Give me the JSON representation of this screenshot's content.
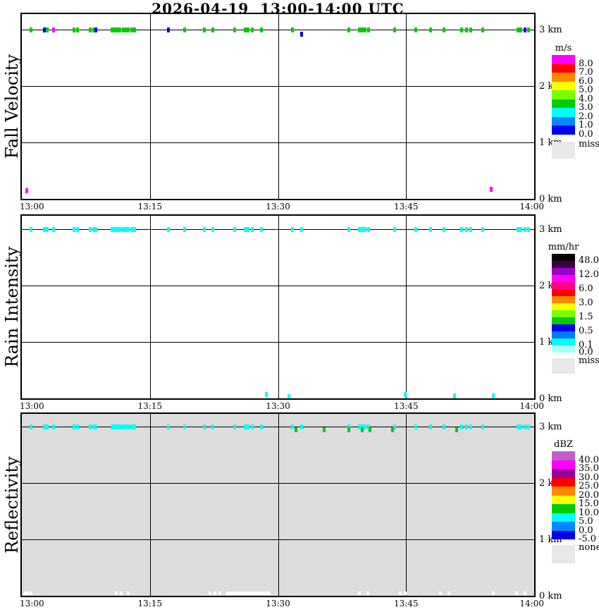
{
  "title": "2026-04-19  13:00-14:00 UTC",
  "palette": {
    "g": "#00cc00",
    "b": "#0000ee",
    "m": "#ff00ff",
    "c": "#00ffff",
    "w": "#ffffff"
  },
  "chart_data": [
    {
      "type": "heatmap",
      "panel": "fall_velocity",
      "ylabel": "Fall Velocity",
      "units": "m/s",
      "background": "#ffffff",
      "x_range": [
        "13:00",
        "14:00"
      ],
      "y_range_km": [
        0,
        3.3
      ],
      "x_ticks": [
        "13:00",
        "13:15",
        "13:30",
        "13:45",
        "14:00"
      ],
      "y_ticks": [
        "3 km",
        "2 km",
        "1 km",
        "0 km"
      ],
      "legend": {
        "title": "m/s",
        "blocks": [
          {
            "color": "#ff00ff",
            "label": "8.0"
          },
          {
            "color": "#ff0000",
            "label": "7.0"
          },
          {
            "color": "#ff8800",
            "label": "6.0"
          },
          {
            "color": "#ffff00",
            "label": "5.0"
          },
          {
            "color": "#77ff00",
            "label": "4.0"
          },
          {
            "color": "#00cc00",
            "label": "3.0"
          },
          {
            "color": "#00ffff",
            "label": "2.0"
          },
          {
            "color": "#0088ff",
            "label": "1.0"
          },
          {
            "color": "#0000ee",
            "label": "0.0"
          }
        ],
        "miss": {
          "color": "#e8e8e8",
          "label": "miss"
        }
      },
      "marks": [
        [
          1.1,
          3,
          "g"
        ],
        [
          2.7,
          3,
          "g"
        ],
        [
          3.0,
          3,
          "g"
        ],
        [
          6.1,
          3,
          "g"
        ],
        [
          6.5,
          3,
          "g"
        ],
        [
          8.0,
          3,
          "g"
        ],
        [
          8.4,
          3,
          "g"
        ],
        [
          10.6,
          3,
          "g"
        ],
        [
          10.9,
          3,
          "g"
        ],
        [
          11.2,
          3,
          "g"
        ],
        [
          11.5,
          3,
          "g"
        ],
        [
          11.9,
          3,
          "g"
        ],
        [
          12.2,
          3,
          "g"
        ],
        [
          12.5,
          3,
          "g"
        ],
        [
          12.9,
          3,
          "g"
        ],
        [
          13.2,
          3,
          "g"
        ],
        [
          19.1,
          3,
          "g"
        ],
        [
          21.4,
          3,
          "g"
        ],
        [
          22.4,
          3,
          "g"
        ],
        [
          24.9,
          3,
          "g"
        ],
        [
          26.2,
          3,
          "g"
        ],
        [
          26.5,
          3,
          "g"
        ],
        [
          27.0,
          3,
          "g"
        ],
        [
          28.1,
          3,
          "g"
        ],
        [
          31.7,
          3,
          "g"
        ],
        [
          38.3,
          3,
          "g"
        ],
        [
          39.5,
          3,
          "g"
        ],
        [
          39.9,
          3,
          "g"
        ],
        [
          40.2,
          3,
          "g"
        ],
        [
          40.6,
          3,
          "g"
        ],
        [
          43.7,
          3,
          "g"
        ],
        [
          46.1,
          3,
          "g"
        ],
        [
          47.9,
          3,
          "g"
        ],
        [
          49.4,
          3,
          "g"
        ],
        [
          51.5,
          3,
          "g"
        ],
        [
          52.1,
          3,
          "g"
        ],
        [
          52.6,
          3,
          "g"
        ],
        [
          54.0,
          3,
          "g"
        ],
        [
          58.1,
          3,
          "g"
        ],
        [
          58.4,
          3,
          "g"
        ],
        [
          59.3,
          3,
          "g"
        ],
        [
          2.6,
          3,
          "b"
        ],
        [
          8.7,
          3,
          "b"
        ],
        [
          17.2,
          3,
          "b"
        ],
        [
          58.9,
          3,
          "b"
        ],
        [
          32.8,
          2.93,
          "b"
        ],
        [
          3.7,
          3,
          "m"
        ],
        [
          0.6,
          0.15,
          "m"
        ],
        [
          55.0,
          0.18,
          "m"
        ]
      ]
    },
    {
      "type": "heatmap",
      "panel": "rain_intensity",
      "ylabel": "Rain Intensity",
      "units": "mm/hr",
      "background": "#ffffff",
      "x_range": [
        "13:00",
        "14:00"
      ],
      "y_range_km": [
        0,
        3.3
      ],
      "x_ticks": [
        "13:00",
        "13:15",
        "13:30",
        "13:45",
        "14:00"
      ],
      "y_ticks": [
        "3 km",
        "2 km",
        "1 km",
        "0 km"
      ],
      "legend": {
        "title": "mm/hr",
        "blocks": [
          {
            "color": "#000000",
            "label": "48.0"
          },
          {
            "color": "#3c0040",
            "label": ""
          },
          {
            "color": "#9900cc",
            "label": "12.0"
          },
          {
            "color": "#ff00ff",
            "label": ""
          },
          {
            "color": "#ff0088",
            "label": "6.0"
          },
          {
            "color": "#ff0000",
            "label": ""
          },
          {
            "color": "#ff8800",
            "label": "3.0"
          },
          {
            "color": "#ffff00",
            "label": ""
          },
          {
            "color": "#77ff00",
            "label": "1.5"
          },
          {
            "color": "#00cc00",
            "label": ""
          },
          {
            "color": "#0000ee",
            "label": "0.5"
          },
          {
            "color": "#0077ff",
            "label": ""
          },
          {
            "color": "#00ffff",
            "label": "0.1"
          },
          {
            "color": "#aaffff",
            "label": "0.0"
          }
        ],
        "miss": {
          "color": "#e8e8e8",
          "label": "miss"
        }
      },
      "marks": [
        [
          1.1,
          3,
          "c"
        ],
        [
          2.6,
          3,
          "c"
        ],
        [
          2.7,
          3,
          "c"
        ],
        [
          3.0,
          3,
          "c"
        ],
        [
          3.7,
          3,
          "c"
        ],
        [
          6.1,
          3,
          "c"
        ],
        [
          6.5,
          3,
          "c"
        ],
        [
          8.0,
          3,
          "c"
        ],
        [
          8.4,
          3,
          "c"
        ],
        [
          8.7,
          3,
          "c"
        ],
        [
          10.6,
          3,
          "c"
        ],
        [
          10.9,
          3,
          "c"
        ],
        [
          11.2,
          3,
          "c"
        ],
        [
          11.5,
          3,
          "c"
        ],
        [
          11.9,
          3,
          "c"
        ],
        [
          12.2,
          3,
          "c"
        ],
        [
          12.5,
          3,
          "c"
        ],
        [
          12.9,
          3,
          "c"
        ],
        [
          13.2,
          3,
          "c"
        ],
        [
          17.2,
          3,
          "c"
        ],
        [
          19.1,
          3,
          "c"
        ],
        [
          21.4,
          3,
          "c"
        ],
        [
          22.4,
          3,
          "c"
        ],
        [
          24.9,
          3,
          "c"
        ],
        [
          26.2,
          3,
          "c"
        ],
        [
          26.5,
          3,
          "c"
        ],
        [
          27.0,
          3,
          "c"
        ],
        [
          28.1,
          3,
          "c"
        ],
        [
          31.7,
          3,
          "c"
        ],
        [
          32.8,
          3,
          "c"
        ],
        [
          38.3,
          3,
          "c"
        ],
        [
          39.5,
          3,
          "c"
        ],
        [
          39.9,
          3,
          "c"
        ],
        [
          40.2,
          3,
          "c"
        ],
        [
          40.6,
          3,
          "c"
        ],
        [
          43.7,
          3,
          "c"
        ],
        [
          46.1,
          3,
          "c"
        ],
        [
          47.9,
          3,
          "c"
        ],
        [
          49.4,
          3,
          "c"
        ],
        [
          51.5,
          3,
          "c"
        ],
        [
          52.1,
          3,
          "c"
        ],
        [
          52.6,
          3,
          "c"
        ],
        [
          54.0,
          3,
          "c"
        ],
        [
          58.1,
          3,
          "c"
        ],
        [
          58.4,
          3,
          "c"
        ],
        [
          58.9,
          3,
          "c"
        ],
        [
          59.3,
          3,
          "c"
        ],
        [
          28.6,
          0.08,
          "c"
        ],
        [
          31.3,
          0.04,
          "c"
        ],
        [
          44.9,
          0.07,
          "c"
        ],
        [
          50.7,
          0.05,
          "c"
        ],
        [
          55.2,
          0.05,
          "c"
        ]
      ]
    },
    {
      "type": "heatmap",
      "panel": "reflectivity",
      "ylabel": "Reflectivity",
      "units": "dBZ",
      "background": "#dcdcdc",
      "x_range": [
        "13:00",
        "14:00"
      ],
      "y_range_km": [
        0,
        3.3
      ],
      "x_ticks": [
        "13:00",
        "13:15",
        "13:30",
        "13:45",
        "14:00"
      ],
      "y_ticks": [
        "3 km",
        "2 km",
        "1 km",
        "0 km"
      ],
      "legend": {
        "title": "dBZ",
        "blocks": [
          {
            "color": "#c060c6",
            "label": "40.0"
          },
          {
            "color": "#ff00ff",
            "label": "35.0"
          },
          {
            "color": "#990099",
            "label": "30.0"
          },
          {
            "color": "#ff0000",
            "label": "25.0"
          },
          {
            "color": "#ff8800",
            "label": "20.0"
          },
          {
            "color": "#ffff00",
            "label": "15.0"
          },
          {
            "color": "#00cc00",
            "label": "10.0"
          },
          {
            "color": "#00ffff",
            "label": "5.0"
          },
          {
            "color": "#0088ff",
            "label": "0.0"
          },
          {
            "color": "#0000ee",
            "label": "-5.0"
          }
        ],
        "miss": {
          "color": "#e8e8e8",
          "label": "none"
        }
      },
      "marks": [
        [
          1.1,
          3,
          "c"
        ],
        [
          2.6,
          3,
          "c"
        ],
        [
          2.7,
          3,
          "c"
        ],
        [
          3.0,
          3,
          "c"
        ],
        [
          3.7,
          3,
          "c"
        ],
        [
          6.1,
          3,
          "c"
        ],
        [
          6.5,
          3,
          "c"
        ],
        [
          8.0,
          3,
          "c"
        ],
        [
          8.4,
          3,
          "c"
        ],
        [
          8.7,
          3,
          "c"
        ],
        [
          10.6,
          3,
          "c"
        ],
        [
          10.9,
          3,
          "c"
        ],
        [
          11.2,
          3,
          "c"
        ],
        [
          11.5,
          3,
          "c"
        ],
        [
          11.9,
          3,
          "c"
        ],
        [
          12.2,
          3,
          "c"
        ],
        [
          12.5,
          3,
          "c"
        ],
        [
          12.9,
          3,
          "c"
        ],
        [
          13.2,
          3,
          "c"
        ],
        [
          17.2,
          3,
          "c"
        ],
        [
          19.1,
          3,
          "c"
        ],
        [
          21.4,
          3,
          "c"
        ],
        [
          22.4,
          3,
          "c"
        ],
        [
          24.9,
          3,
          "c"
        ],
        [
          26.2,
          3,
          "c"
        ],
        [
          26.5,
          3,
          "c"
        ],
        [
          27.0,
          3,
          "c"
        ],
        [
          28.1,
          3,
          "c"
        ],
        [
          31.7,
          3,
          "c"
        ],
        [
          32.8,
          3,
          "c"
        ],
        [
          38.3,
          3,
          "c"
        ],
        [
          39.5,
          3,
          "c"
        ],
        [
          39.9,
          3,
          "c"
        ],
        [
          40.2,
          3,
          "c"
        ],
        [
          40.6,
          3,
          "c"
        ],
        [
          43.7,
          3,
          "c"
        ],
        [
          46.1,
          3,
          "c"
        ],
        [
          47.9,
          3,
          "c"
        ],
        [
          49.4,
          3,
          "c"
        ],
        [
          51.5,
          3,
          "c"
        ],
        [
          52.1,
          3,
          "c"
        ],
        [
          52.6,
          3,
          "c"
        ],
        [
          54.0,
          3,
          "c"
        ],
        [
          58.1,
          3,
          "c"
        ],
        [
          58.4,
          3,
          "c"
        ],
        [
          58.9,
          3,
          "c"
        ],
        [
          59.3,
          3,
          "c"
        ],
        [
          32.1,
          2.95,
          "g"
        ],
        [
          35.4,
          2.95,
          "g"
        ],
        [
          38.3,
          2.95,
          "g"
        ],
        [
          39.9,
          2.95,
          "g"
        ],
        [
          40.8,
          2.95,
          "g"
        ],
        [
          43.4,
          2.95,
          "g"
        ],
        [
          50.9,
          2.95,
          "g"
        ],
        [
          0.4,
          0.05,
          "w"
        ],
        [
          0.7,
          0.05,
          "w"
        ],
        [
          1.1,
          0.05,
          "w"
        ],
        [
          11.1,
          0.05,
          "w"
        ],
        [
          11.6,
          0.05,
          "w"
        ],
        [
          12.5,
          0.05,
          "w"
        ],
        [
          22.0,
          0.05,
          "w"
        ],
        [
          22.6,
          0.05,
          "w"
        ],
        [
          23.2,
          0.05,
          "w"
        ],
        [
          26.5,
          0.05,
          "w",
          5.2
        ],
        [
          39.5,
          0.05,
          "w"
        ],
        [
          40.5,
          0.05,
          "w"
        ],
        [
          44.3,
          0.05,
          "w"
        ],
        [
          44.9,
          0.05,
          "w"
        ],
        [
          49.0,
          0.05,
          "w"
        ],
        [
          50.0,
          0.05,
          "w"
        ],
        [
          55.2,
          0.05,
          "w"
        ],
        [
          57.9,
          0.05,
          "w"
        ],
        [
          58.9,
          0.05,
          "w"
        ]
      ]
    }
  ]
}
